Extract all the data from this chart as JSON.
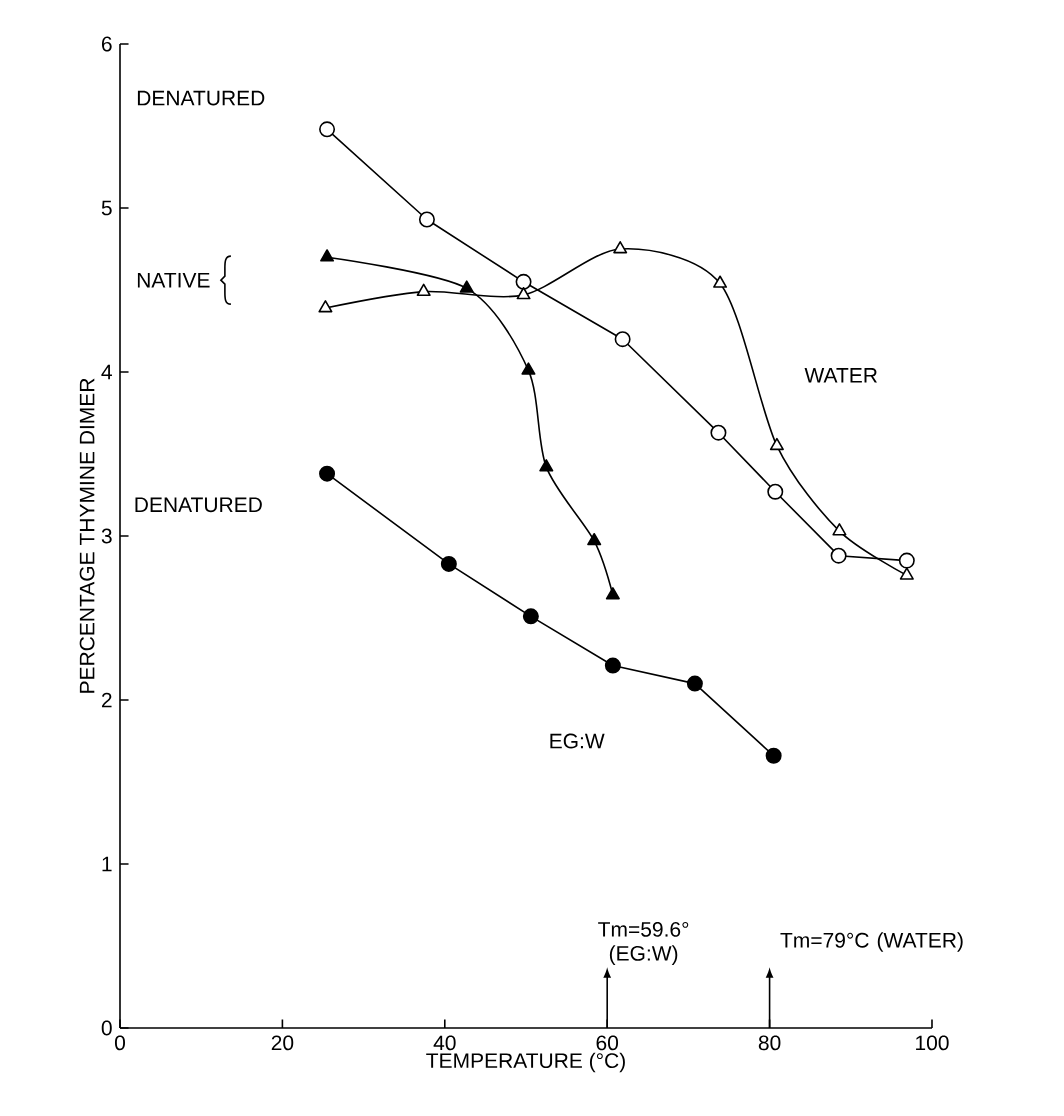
{
  "chart_data": {
    "type": "line",
    "xlabel": "TEMPERATURE (°C)",
    "ylabel": "PERCENTAGE THYMINE DIMER",
    "xlim": [
      0,
      100
    ],
    "ylim": [
      0,
      6
    ],
    "xticks": [
      0,
      20,
      40,
      60,
      80,
      100
    ],
    "yticks": [
      0,
      1,
      2,
      3,
      4,
      5,
      6
    ],
    "grid": false,
    "series": [
      {
        "color": "#000000",
        "marker": "circle",
        "x": [
          25.5,
          37.8,
          49.7,
          61.9,
          73.7,
          80.7,
          88.5,
          96.9
        ],
        "values": [
          5.48,
          4.93,
          4.55,
          4.2,
          3.63,
          3.27,
          2.88,
          2.85
        ]
      },
      {
        "color": "#000000",
        "marker": "triangle",
        "x": [
          25.3,
          37.4,
          49.7,
          61.6,
          73.9,
          80.9,
          88.6,
          96.9
        ],
        "values": [
          4.39,
          4.49,
          4.47,
          4.75,
          4.54,
          3.55,
          3.03,
          2.76
        ]
      },
      {
        "color": "#000000",
        "marker": "triangle",
        "x": [
          25.5,
          42.7,
          50.3,
          52.5,
          58.4,
          60.7
        ],
        "values": [
          4.7,
          4.51,
          4.01,
          3.42,
          2.97,
          2.64
        ]
      },
      {
        "color": "#000000",
        "marker": "circle",
        "x": [
          25.5,
          40.5,
          50.6,
          60.7,
          70.8,
          80.5
        ],
        "values": [
          3.38,
          2.83,
          2.51,
          2.21,
          2.1,
          1.66
        ]
      }
    ],
    "annotations": [
      "DENATURED",
      "NATIVE",
      "WATER",
      "DENATURED",
      "EG:W",
      "Tm=59.6° (EG:W)",
      "Tm=79°C (WATER)"
    ]
  }
}
